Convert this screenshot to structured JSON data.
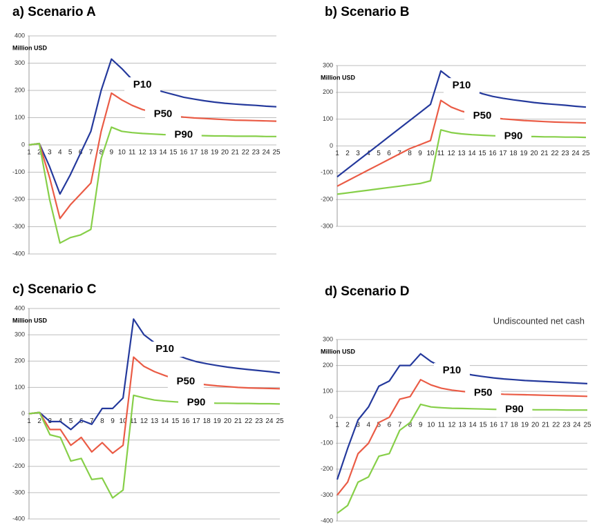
{
  "chart_data": [
    {
      "type": "line",
      "title": "a) Scenario A",
      "y_label": "Million USD",
      "categories": [
        "1",
        "2",
        "3",
        "4",
        "5",
        "6",
        "7",
        "8",
        "9",
        "10",
        "11",
        "12",
        "13",
        "14",
        "15",
        "16",
        "17",
        "18",
        "19",
        "20",
        "21",
        "22",
        "23",
        "24",
        "25"
      ],
      "ylim": [
        -400,
        400
      ],
      "yticks": [
        -400,
        -300,
        -200,
        -100,
        0,
        100,
        200,
        300,
        400
      ],
      "grid": true,
      "series": [
        {
          "name": "P10",
          "color": "#24399c",
          "values": [
            0,
            5,
            -80,
            -180,
            -110,
            -30,
            50,
            200,
            315,
            280,
            240,
            220,
            205,
            195,
            185,
            175,
            168,
            162,
            157,
            153,
            150,
            147,
            145,
            142,
            140
          ]
        },
        {
          "name": "P50",
          "color": "#ea5b45",
          "values": [
            0,
            5,
            -120,
            -270,
            -220,
            -180,
            -140,
            50,
            190,
            165,
            145,
            130,
            120,
            112,
            106,
            102,
            99,
            97,
            95,
            93,
            91,
            90,
            89,
            88,
            87
          ]
        },
        {
          "name": "P90",
          "color": "#86cf48",
          "values": [
            0,
            5,
            -200,
            -360,
            -340,
            -330,
            -310,
            -50,
            65,
            50,
            45,
            42,
            40,
            38,
            37,
            36,
            35,
            34,
            33,
            33,
            32,
            32,
            32,
            31,
            31
          ]
        }
      ]
    },
    {
      "type": "line",
      "title": "b) Scenario B",
      "y_label": "Million USD",
      "categories": [
        "1",
        "2",
        "3",
        "4",
        "5",
        "6",
        "7",
        "8",
        "9",
        "10",
        "11",
        "12",
        "13",
        "14",
        "15",
        "16",
        "17",
        "18",
        "19",
        "20",
        "21",
        "22",
        "23",
        "24",
        "25"
      ],
      "ylim": [
        -300,
        300
      ],
      "yticks": [
        -300,
        -200,
        -100,
        0,
        100,
        200,
        300
      ],
      "grid": true,
      "series": [
        {
          "name": "P10",
          "color": "#24399c",
          "values": [
            -115,
            -85,
            -55,
            -25,
            5,
            35,
            65,
            95,
            125,
            155,
            280,
            250,
            225,
            210,
            195,
            185,
            178,
            172,
            167,
            162,
            158,
            155,
            152,
            148,
            145
          ]
        },
        {
          "name": "P50",
          "color": "#ea5b45",
          "values": [
            -150,
            -130,
            -110,
            -90,
            -70,
            -50,
            -30,
            -10,
            5,
            20,
            170,
            145,
            130,
            120,
            112,
            106,
            101,
            98,
            95,
            93,
            91,
            89,
            88,
            87,
            86
          ]
        },
        {
          "name": "P90",
          "color": "#86cf48",
          "values": [
            -180,
            -175,
            -170,
            -165,
            -160,
            -155,
            -150,
            -145,
            -140,
            -130,
            60,
            50,
            45,
            42,
            40,
            38,
            37,
            36,
            35,
            35,
            34,
            34,
            33,
            33,
            32
          ]
        }
      ]
    },
    {
      "type": "line",
      "title": "c) Scenario C",
      "y_label": "Million USD",
      "categories": [
        "1",
        "2",
        "3",
        "4",
        "5",
        "6",
        "7",
        "8",
        "9",
        "10",
        "11",
        "12",
        "13",
        "14",
        "15",
        "16",
        "17",
        "18",
        "19",
        "20",
        "21",
        "22",
        "23",
        "24",
        "25"
      ],
      "ylim": [
        -400,
        400
      ],
      "yticks": [
        -400,
        -300,
        -200,
        -100,
        0,
        100,
        200,
        300,
        400
      ],
      "grid": true,
      "series": [
        {
          "name": "P10",
          "color": "#24399c",
          "values": [
            0,
            5,
            -30,
            -30,
            -60,
            -25,
            -40,
            20,
            20,
            60,
            360,
            300,
            270,
            245,
            225,
            210,
            198,
            190,
            183,
            177,
            172,
            168,
            164,
            160,
            155
          ]
        },
        {
          "name": "P50",
          "color": "#ea5b45",
          "values": [
            0,
            5,
            -60,
            -60,
            -120,
            -90,
            -145,
            -110,
            -150,
            -120,
            215,
            180,
            160,
            145,
            132,
            122,
            115,
            110,
            106,
            103,
            100,
            98,
            97,
            96,
            95
          ]
        },
        {
          "name": "P90",
          "color": "#86cf48",
          "values": [
            0,
            5,
            -80,
            -90,
            -180,
            -170,
            -250,
            -245,
            -320,
            -290,
            70,
            60,
            52,
            48,
            45,
            43,
            42,
            41,
            40,
            40,
            39,
            39,
            38,
            38,
            37
          ]
        }
      ]
    },
    {
      "type": "line",
      "title": "d) Scenario D",
      "y_label": "Million USD",
      "annotation": "Undiscounted net cash",
      "categories": [
        "1",
        "2",
        "3",
        "4",
        "5",
        "6",
        "7",
        "8",
        "9",
        "10",
        "11",
        "12",
        "13",
        "14",
        "15",
        "16",
        "17",
        "18",
        "19",
        "20",
        "21",
        "22",
        "23",
        "24",
        "25"
      ],
      "ylim": [
        -400,
        300
      ],
      "yticks": [
        -400,
        -300,
        -200,
        -100,
        0,
        100,
        200,
        300
      ],
      "grid": true,
      "series": [
        {
          "name": "P10",
          "color": "#24399c",
          "values": [
            -240,
            -120,
            -10,
            40,
            120,
            140,
            200,
            200,
            245,
            215,
            195,
            180,
            170,
            163,
            157,
            152,
            148,
            145,
            142,
            140,
            138,
            136,
            134,
            132,
            130
          ]
        },
        {
          "name": "P50",
          "color": "#ea5b45",
          "values": [
            -300,
            -250,
            -140,
            -100,
            -20,
            0,
            70,
            80,
            145,
            125,
            112,
            105,
            100,
            96,
            93,
            91,
            89,
            88,
            87,
            86,
            85,
            84,
            83,
            82,
            81
          ]
        },
        {
          "name": "P90",
          "color": "#86cf48",
          "values": [
            -370,
            -340,
            -250,
            -230,
            -150,
            -140,
            -50,
            -20,
            50,
            40,
            37,
            35,
            34,
            33,
            32,
            31,
            30,
            30,
            30,
            29,
            29,
            29,
            28,
            28,
            28
          ]
        }
      ]
    }
  ]
}
